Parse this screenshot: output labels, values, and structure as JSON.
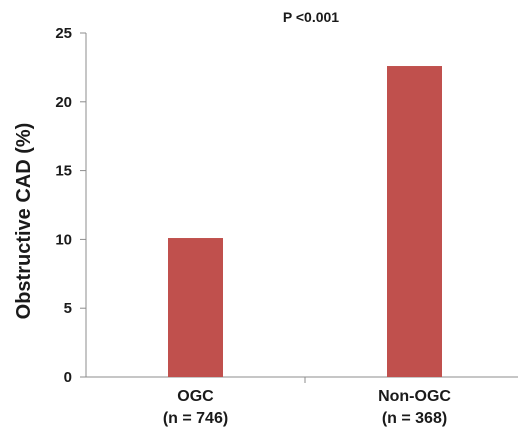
{
  "chart_data": {
    "type": "bar",
    "categories": [
      [
        "OGC",
        "(n = 746)"
      ],
      [
        "Non-OGC",
        "(n = 368)"
      ]
    ],
    "values": [
      10.1,
      22.6
    ],
    "ylabel": "Obstructive CAD (%)",
    "xlabel": "",
    "ylim": [
      0,
      25
    ],
    "yticks": [
      0,
      5,
      10,
      15,
      20,
      25
    ],
    "annotation": "P  <0.001",
    "grid": false,
    "legend": "none",
    "bar_color": "#c0504d"
  }
}
